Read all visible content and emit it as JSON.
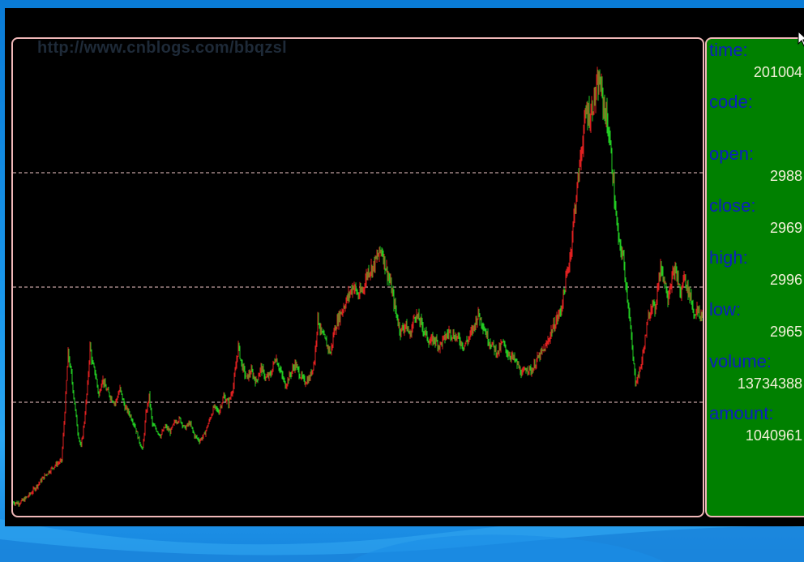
{
  "chart": {
    "watermark": "http://www.cnblogs.com/bbqzsl"
  },
  "info": {
    "fields": [
      {
        "label": "time:",
        "value": "201004"
      },
      {
        "label": "code:",
        "value": ""
      },
      {
        "label": "open:",
        "value": "2988"
      },
      {
        "label": "close:",
        "value": "2969"
      },
      {
        "label": "high:",
        "value": "2996"
      },
      {
        "label": "low:",
        "value": "2965"
      },
      {
        "label": "volume:",
        "value": "13734388"
      },
      {
        "label": "amount:",
        "value": "1040961"
      }
    ]
  },
  "chart_data": {
    "type": "line",
    "ylim": [
      0,
      6200
    ],
    "grid": "dashed horizontal",
    "colors": {
      "up": "#e02020",
      "down": "#22cc22",
      "grid": "#f2c8c8",
      "border": "#f0b8b8"
    },
    "points": [
      [
        0,
        120
      ],
      [
        6,
        110
      ],
      [
        12,
        140
      ],
      [
        20,
        220
      ],
      [
        28,
        330
      ],
      [
        40,
        500
      ],
      [
        52,
        640
      ],
      [
        60,
        700
      ],
      [
        64,
        1400
      ],
      [
        68,
        2200
      ],
      [
        72,
        1900
      ],
      [
        76,
        1500
      ],
      [
        80,
        1100
      ],
      [
        84,
        880
      ],
      [
        88,
        1250
      ],
      [
        92,
        1750
      ],
      [
        95,
        2300
      ],
      [
        98,
        2050
      ],
      [
        102,
        1900
      ],
      [
        106,
        1600
      ],
      [
        110,
        1850
      ],
      [
        115,
        1700
      ],
      [
        120,
        1600
      ],
      [
        126,
        1500
      ],
      [
        132,
        1700
      ],
      [
        138,
        1450
      ],
      [
        144,
        1350
      ],
      [
        150,
        1200
      ],
      [
        155,
        1000
      ],
      [
        160,
        850
      ],
      [
        164,
        1350
      ],
      [
        168,
        1600
      ],
      [
        172,
        1200
      ],
      [
        176,
        1150
      ],
      [
        182,
        1050
      ],
      [
        188,
        1180
      ],
      [
        194,
        1100
      ],
      [
        200,
        1250
      ],
      [
        206,
        1280
      ],
      [
        212,
        1150
      ],
      [
        218,
        1230
      ],
      [
        224,
        1050
      ],
      [
        230,
        980
      ],
      [
        236,
        1060
      ],
      [
        242,
        1250
      ],
      [
        248,
        1450
      ],
      [
        254,
        1380
      ],
      [
        260,
        1600
      ],
      [
        266,
        1500
      ],
      [
        272,
        1750
      ],
      [
        278,
        2300
      ],
      [
        282,
        2050
      ],
      [
        288,
        1850
      ],
      [
        294,
        1950
      ],
      [
        300,
        1800
      ],
      [
        306,
        2000
      ],
      [
        312,
        1850
      ],
      [
        318,
        1900
      ],
      [
        324,
        2150
      ],
      [
        330,
        1950
      ],
      [
        336,
        1750
      ],
      [
        342,
        1900
      ],
      [
        348,
        2050
      ],
      [
        354,
        1900
      ],
      [
        360,
        1800
      ],
      [
        366,
        1850
      ],
      [
        372,
        2100
      ],
      [
        376,
        2700
      ],
      [
        380,
        2500
      ],
      [
        386,
        2350
      ],
      [
        392,
        2200
      ],
      [
        396,
        2500
      ],
      [
        402,
        2700
      ],
      [
        408,
        2850
      ],
      [
        414,
        3000
      ],
      [
        420,
        3150
      ],
      [
        426,
        3000
      ],
      [
        432,
        3100
      ],
      [
        438,
        3350
      ],
      [
        444,
        3400
      ],
      [
        450,
        3550
      ],
      [
        455,
        3650
      ],
      [
        460,
        3400
      ],
      [
        466,
        3150
      ],
      [
        472,
        2800
      ],
      [
        478,
        2500
      ],
      [
        484,
        2600
      ],
      [
        490,
        2450
      ],
      [
        496,
        2750
      ],
      [
        502,
        2650
      ],
      [
        508,
        2500
      ],
      [
        514,
        2350
      ],
      [
        520,
        2400
      ],
      [
        526,
        2300
      ],
      [
        532,
        2400
      ],
      [
        538,
        2500
      ],
      [
        544,
        2450
      ],
      [
        550,
        2400
      ],
      [
        556,
        2300
      ],
      [
        562,
        2400
      ],
      [
        568,
        2550
      ],
      [
        574,
        2750
      ],
      [
        580,
        2600
      ],
      [
        586,
        2400
      ],
      [
        592,
        2300
      ],
      [
        598,
        2200
      ],
      [
        604,
        2350
      ],
      [
        610,
        2200
      ],
      [
        616,
        2150
      ],
      [
        622,
        2050
      ],
      [
        628,
        1900
      ],
      [
        634,
        2000
      ],
      [
        640,
        1950
      ],
      [
        646,
        2100
      ],
      [
        652,
        2200
      ],
      [
        658,
        2300
      ],
      [
        664,
        2500
      ],
      [
        670,
        2650
      ],
      [
        676,
        2800
      ],
      [
        682,
        3200
      ],
      [
        688,
        3600
      ],
      [
        692,
        4100
      ],
      [
        696,
        4500
      ],
      [
        700,
        4900
      ],
      [
        704,
        5300
      ],
      [
        708,
        5600
      ],
      [
        712,
        5500
      ],
      [
        716,
        5700
      ],
      [
        720,
        5850
      ],
      [
        724,
        6000
      ],
      [
        728,
        5700
      ],
      [
        732,
        5500
      ],
      [
        736,
        5200
      ],
      [
        740,
        4700
      ],
      [
        744,
        4100
      ],
      [
        748,
        3700
      ],
      [
        752,
        3600
      ],
      [
        756,
        3200
      ],
      [
        760,
        2800
      ],
      [
        764,
        2250
      ],
      [
        768,
        1800
      ],
      [
        772,
        1900
      ],
      [
        776,
        2100
      ],
      [
        780,
        2400
      ],
      [
        784,
        2700
      ],
      [
        788,
        2900
      ],
      [
        792,
        2800
      ],
      [
        796,
        3200
      ],
      [
        800,
        3400
      ],
      [
        804,
        3200
      ],
      [
        808,
        3000
      ],
      [
        812,
        3200
      ],
      [
        816,
        3350
      ],
      [
        820,
        3250
      ],
      [
        824,
        3000
      ],
      [
        828,
        3300
      ],
      [
        832,
        3100
      ],
      [
        836,
        3000
      ],
      [
        840,
        2750
      ],
      [
        844,
        2800
      ],
      [
        848,
        2700
      ],
      [
        852,
        2800
      ]
    ]
  }
}
